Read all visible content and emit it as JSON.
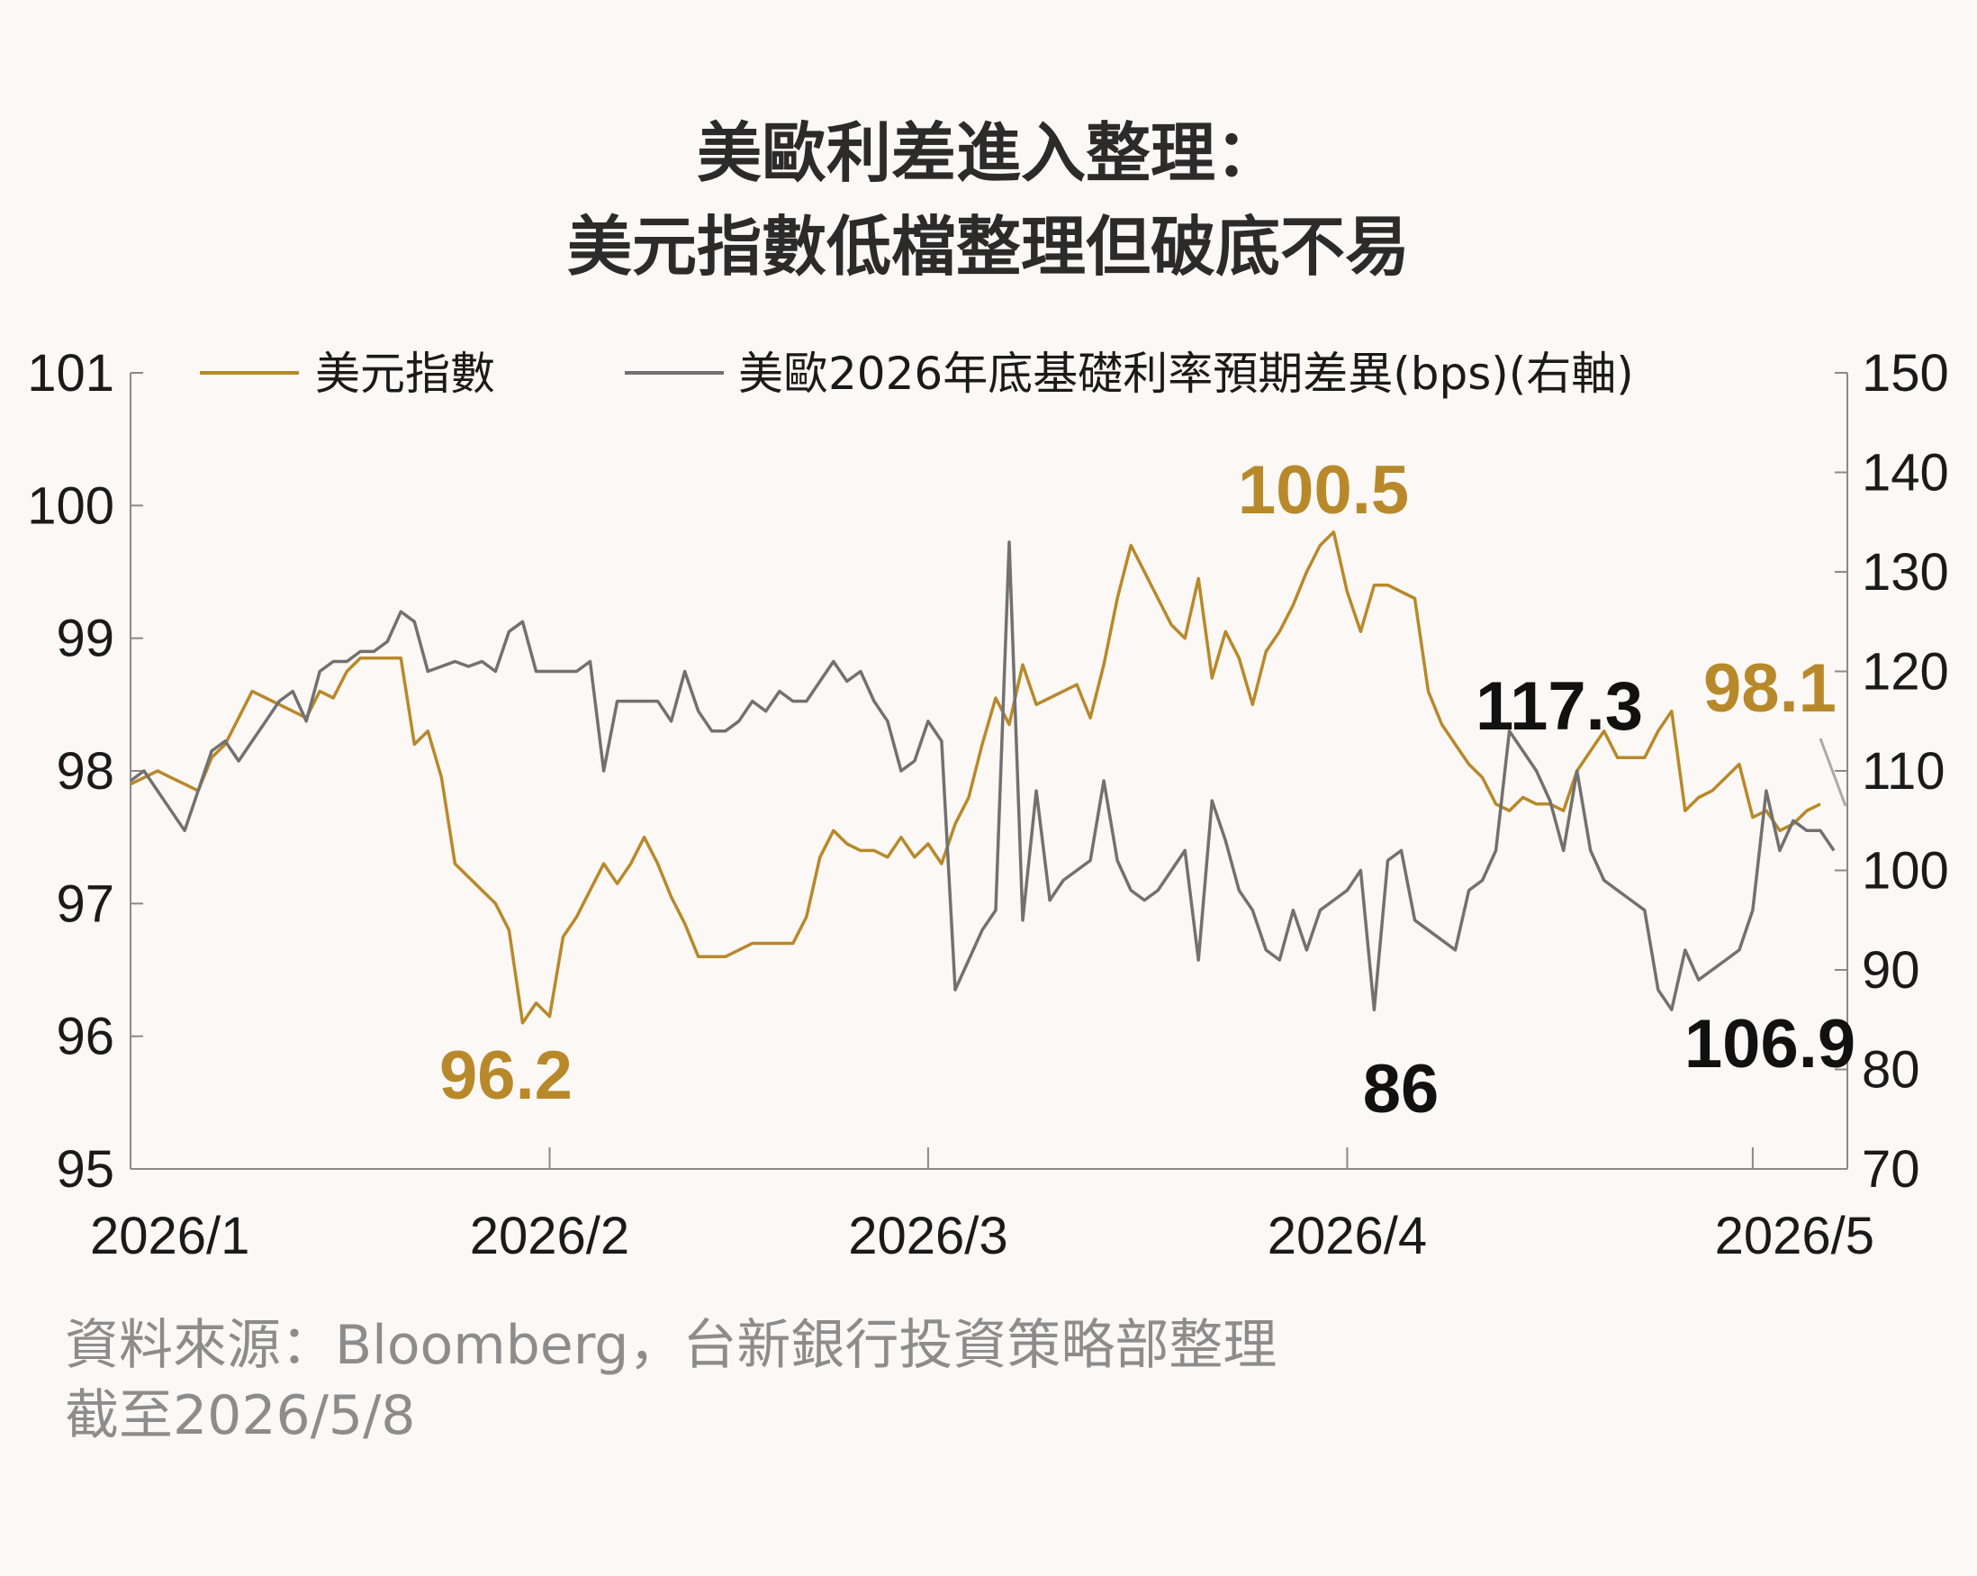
{
  "title": {
    "line1": "美歐利差進入整理：",
    "line2": "美元指數低檔整理但破底不易"
  },
  "footer": {
    "source": "資料來源：Bloomberg，台新銀行投資策略部整理",
    "as_of": "截至2026/5/8"
  },
  "colors": {
    "dxy": "#b8892a",
    "spread": "#717171",
    "axis": "#8a8a8a",
    "background": "#fcf8f5"
  },
  "chart_data": {
    "type": "line",
    "legend_placement": "top",
    "grid": false,
    "x_range": [
      0,
      127
    ],
    "x_ticks": [
      {
        "label": "2026/1",
        "x": 0
      },
      {
        "label": "2026/2",
        "x": 31
      },
      {
        "label": "2026/3",
        "x": 59
      },
      {
        "label": "2026/4",
        "x": 90
      },
      {
        "label": "2026/5",
        "x": 120
      }
    ],
    "y_left": {
      "min": 95,
      "max": 101,
      "ticks": [
        "95",
        "96",
        "97",
        "98",
        "99",
        "100",
        "101"
      ]
    },
    "y_right": {
      "min": 70,
      "max": 150,
      "ticks": [
        "70",
        "80",
        "90",
        "100",
        "110",
        "120",
        "130",
        "140",
        "150"
      ]
    },
    "series": [
      {
        "name": "美元指數",
        "axis": "left",
        "points": [
          [
            0,
            97.9
          ],
          [
            1,
            97.95
          ],
          [
            2,
            98.0
          ],
          [
            3,
            97.95
          ],
          [
            4,
            97.9
          ],
          [
            5,
            97.85
          ],
          [
            6,
            98.1
          ],
          [
            7,
            98.2
          ],
          [
            8,
            98.4
          ],
          [
            9,
            98.6
          ],
          [
            10,
            98.55
          ],
          [
            11,
            98.5
          ],
          [
            12,
            98.45
          ],
          [
            13,
            98.4
          ],
          [
            14,
            98.6
          ],
          [
            15,
            98.55
          ],
          [
            16,
            98.75
          ],
          [
            17,
            98.85
          ],
          [
            18,
            98.85
          ],
          [
            19,
            98.85
          ],
          [
            20,
            98.85
          ],
          [
            21,
            98.2
          ],
          [
            22,
            98.3
          ],
          [
            23,
            97.95
          ],
          [
            24,
            97.3
          ],
          [
            25,
            97.2
          ],
          [
            26,
            97.1
          ],
          [
            27,
            97.0
          ],
          [
            28,
            96.8
          ],
          [
            29,
            96.1
          ],
          [
            30,
            96.25
          ],
          [
            31,
            96.15
          ],
          [
            32,
            96.75
          ],
          [
            33,
            96.9
          ],
          [
            34,
            97.1
          ],
          [
            35,
            97.3
          ],
          [
            36,
            97.15
          ],
          [
            37,
            97.3
          ],
          [
            38,
            97.5
          ],
          [
            39,
            97.3
          ],
          [
            40,
            97.05
          ],
          [
            41,
            96.85
          ],
          [
            42,
            96.6
          ],
          [
            43,
            96.6
          ],
          [
            44,
            96.6
          ],
          [
            45,
            96.65
          ],
          [
            46,
            96.7
          ],
          [
            47,
            96.7
          ],
          [
            48,
            96.7
          ],
          [
            49,
            96.7
          ],
          [
            50,
            96.9
          ],
          [
            51,
            97.35
          ],
          [
            52,
            97.55
          ],
          [
            53,
            97.45
          ],
          [
            54,
            97.4
          ],
          [
            55,
            97.4
          ],
          [
            56,
            97.35
          ],
          [
            57,
            97.5
          ],
          [
            58,
            97.35
          ],
          [
            59,
            97.45
          ],
          [
            60,
            97.3
          ],
          [
            61,
            97.6
          ],
          [
            62,
            97.8
          ],
          [
            63,
            98.2
          ],
          [
            64,
            98.55
          ],
          [
            65,
            98.35
          ],
          [
            66,
            98.8
          ],
          [
            67,
            98.5
          ],
          [
            68,
            98.55
          ],
          [
            69,
            98.6
          ],
          [
            70,
            98.65
          ],
          [
            71,
            98.4
          ],
          [
            72,
            98.8
          ],
          [
            73,
            99.3
          ],
          [
            74,
            99.7
          ],
          [
            75,
            99.5
          ],
          [
            76,
            99.3
          ],
          [
            77,
            99.1
          ],
          [
            78,
            99.0
          ],
          [
            79,
            99.45
          ],
          [
            80,
            98.7
          ],
          [
            81,
            99.05
          ],
          [
            82,
            98.85
          ],
          [
            83,
            98.5
          ],
          [
            84,
            98.9
          ],
          [
            85,
            99.05
          ],
          [
            86,
            99.25
          ],
          [
            87,
            99.5
          ],
          [
            88,
            99.7
          ],
          [
            89,
            99.8
          ],
          [
            90,
            99.35
          ],
          [
            91,
            99.05
          ],
          [
            92,
            99.4
          ],
          [
            93,
            99.4
          ],
          [
            94,
            99.35
          ],
          [
            95,
            99.3
          ],
          [
            96,
            98.6
          ],
          [
            97,
            98.35
          ],
          [
            98,
            98.2
          ],
          [
            99,
            98.05
          ],
          [
            100,
            97.95
          ],
          [
            101,
            97.75
          ],
          [
            102,
            97.7
          ],
          [
            103,
            97.8
          ],
          [
            104,
            97.75
          ],
          [
            105,
            97.75
          ],
          [
            106,
            97.7
          ],
          [
            107,
            98.0
          ],
          [
            108,
            98.15
          ],
          [
            109,
            98.3
          ],
          [
            110,
            98.1
          ],
          [
            111,
            98.1
          ],
          [
            112,
            98.1
          ],
          [
            113,
            98.3
          ],
          [
            114,
            98.45
          ],
          [
            115,
            97.7
          ],
          [
            116,
            97.8
          ],
          [
            117,
            97.85
          ],
          [
            118,
            97.95
          ],
          [
            119,
            98.05
          ],
          [
            120,
            97.65
          ],
          [
            121,
            97.7
          ],
          [
            122,
            97.55
          ],
          [
            123,
            97.6
          ],
          [
            124,
            97.7
          ],
          [
            125,
            97.75
          ]
        ]
      },
      {
        "name": "美歐2026年底基礎利率預期差異(bps)(右軸)",
        "axis": "right",
        "points": [
          [
            0,
            109
          ],
          [
            1,
            110
          ],
          [
            2,
            108
          ],
          [
            3,
            106
          ],
          [
            4,
            104
          ],
          [
            5,
            108
          ],
          [
            6,
            112
          ],
          [
            7,
            113
          ],
          [
            8,
            111
          ],
          [
            9,
            113
          ],
          [
            10,
            115
          ],
          [
            11,
            117
          ],
          [
            12,
            118
          ],
          [
            13,
            115
          ],
          [
            14,
            120
          ],
          [
            15,
            121
          ],
          [
            16,
            121
          ],
          [
            17,
            122
          ],
          [
            18,
            122
          ],
          [
            19,
            123
          ],
          [
            20,
            126
          ],
          [
            21,
            125
          ],
          [
            22,
            120
          ],
          [
            23,
            120.5
          ],
          [
            24,
            121
          ],
          [
            25,
            120.5
          ],
          [
            26,
            121
          ],
          [
            27,
            120
          ],
          [
            28,
            124
          ],
          [
            29,
            125
          ],
          [
            30,
            120
          ],
          [
            31,
            120
          ],
          [
            32,
            120
          ],
          [
            33,
            120
          ],
          [
            34,
            121
          ],
          [
            35,
            110
          ],
          [
            36,
            117
          ],
          [
            37,
            117
          ],
          [
            38,
            117
          ],
          [
            39,
            117
          ],
          [
            40,
            115
          ],
          [
            41,
            120
          ],
          [
            42,
            116
          ],
          [
            43,
            114
          ],
          [
            44,
            114
          ],
          [
            45,
            115
          ],
          [
            46,
            117
          ],
          [
            47,
            116
          ],
          [
            48,
            118
          ],
          [
            49,
            117
          ],
          [
            50,
            117
          ],
          [
            51,
            119
          ],
          [
            52,
            121
          ],
          [
            53,
            119
          ],
          [
            54,
            120
          ],
          [
            55,
            117
          ],
          [
            56,
            115
          ],
          [
            57,
            110
          ],
          [
            58,
            111
          ],
          [
            59,
            115
          ],
          [
            60,
            113
          ],
          [
            61,
            88
          ],
          [
            62,
            91
          ],
          [
            63,
            94
          ],
          [
            64,
            96
          ],
          [
            65,
            133
          ],
          [
            66,
            95
          ],
          [
            67,
            108
          ],
          [
            68,
            97
          ],
          [
            69,
            99
          ],
          [
            70,
            100
          ],
          [
            71,
            101
          ],
          [
            72,
            109
          ],
          [
            73,
            101
          ],
          [
            74,
            98
          ],
          [
            75,
            97
          ],
          [
            76,
            98
          ],
          [
            77,
            100
          ],
          [
            78,
            102
          ],
          [
            79,
            91
          ],
          [
            80,
            107
          ],
          [
            81,
            103
          ],
          [
            82,
            98
          ],
          [
            83,
            96
          ],
          [
            84,
            92
          ],
          [
            85,
            91
          ],
          [
            86,
            96
          ],
          [
            87,
            92
          ],
          [
            88,
            96
          ],
          [
            89,
            97
          ],
          [
            90,
            98
          ],
          [
            91,
            100
          ],
          [
            92,
            86
          ],
          [
            93,
            101
          ],
          [
            94,
            102
          ],
          [
            95,
            95
          ],
          [
            96,
            94
          ],
          [
            97,
            93
          ],
          [
            98,
            92
          ],
          [
            99,
            98
          ],
          [
            100,
            99
          ],
          [
            101,
            102
          ],
          [
            102,
            114
          ],
          [
            103,
            112
          ],
          [
            104,
            110
          ],
          [
            105,
            107
          ],
          [
            106,
            102
          ],
          [
            107,
            110
          ],
          [
            108,
            102
          ],
          [
            109,
            99
          ],
          [
            110,
            98
          ],
          [
            111,
            97
          ],
          [
            112,
            96
          ],
          [
            113,
            88
          ],
          [
            114,
            86
          ],
          [
            115,
            92
          ],
          [
            116,
            89
          ],
          [
            117,
            90
          ],
          [
            118,
            91
          ],
          [
            119,
            92
          ],
          [
            120,
            96
          ],
          [
            121,
            108
          ],
          [
            122,
            102
          ],
          [
            123,
            105
          ],
          [
            124,
            104
          ],
          [
            125,
            104
          ],
          [
            126,
            102
          ]
        ]
      }
    ],
    "annotations": [
      {
        "text": "100.5",
        "series": "美元指數"
      },
      {
        "text": "96.2",
        "series": "美元指數"
      },
      {
        "text": "98.1",
        "series": "美元指數"
      },
      {
        "text": "117.3",
        "series": "美歐2026年底基礎利率預期差異(bps)(右軸)"
      },
      {
        "text": "86",
        "series": "美歐2026年底基礎利率預期差異(bps)(右軸)"
      },
      {
        "text": "106.9",
        "series": "美歐2026年底基礎利率預期差異(bps)(右軸)"
      }
    ]
  }
}
